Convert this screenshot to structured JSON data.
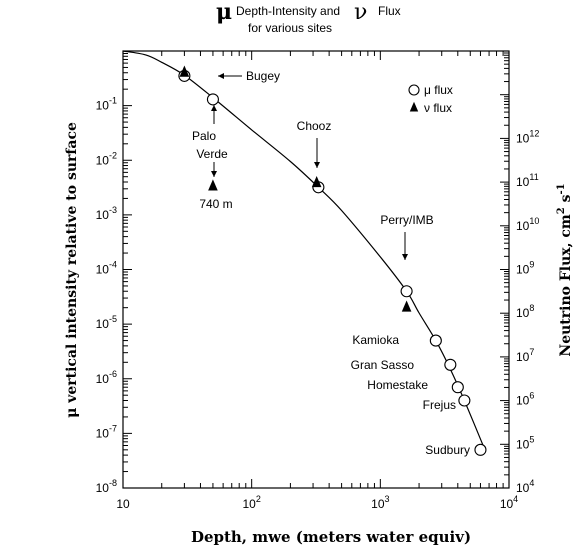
{
  "chart_data": {
    "type": "scatter",
    "title": {
      "mu_symbol": "μ",
      "line1_text": "Depth-Intensity and",
      "nu_symbol": "ν",
      "flux_text": "Flux",
      "line2": "for various sites"
    },
    "xlabel": "Depth, mwe (meters water equiv)",
    "ylabel_left": "μ vertical intensity relative to surface",
    "ylabel_right": {
      "main": "Neutrino Flux, cm",
      "sup1": "2",
      "mid": " s",
      "sup2": "-1"
    },
    "x_scale": "log",
    "xlim": [
      10,
      10000
    ],
    "ylim_left": [
      1e-08,
      1
    ],
    "ylim_right": [
      10000,
      100000000000000
    ],
    "grid": false,
    "x_ticks": [
      {
        "base": "10",
        "exp": ""
      },
      {
        "base": "10",
        "exp": "2"
      },
      {
        "base": "10",
        "exp": "3"
      },
      {
        "base": "10",
        "exp": "4"
      }
    ],
    "y_left_ticks": [
      {
        "base": "10",
        "exp": "-1"
      },
      {
        "base": "10",
        "exp": "-2"
      },
      {
        "base": "10",
        "exp": "-3"
      },
      {
        "base": "10",
        "exp": "-4"
      },
      {
        "base": "10",
        "exp": "-5"
      },
      {
        "base": "10",
        "exp": "-6"
      },
      {
        "base": "10",
        "exp": "-7"
      },
      {
        "base": "10",
        "exp": "-8"
      }
    ],
    "y_right_ticks": [
      {
        "base": "10",
        "exp": "12"
      },
      {
        "base": "10",
        "exp": "11"
      },
      {
        "base": "10",
        "exp": "10"
      },
      {
        "base": "10",
        "exp": "9"
      },
      {
        "base": "10",
        "exp": "8"
      },
      {
        "base": "10",
        "exp": "7"
      },
      {
        "base": "10",
        "exp": "6"
      },
      {
        "base": "10",
        "exp": "5"
      },
      {
        "base": "10",
        "exp": "4"
      }
    ],
    "legend": {
      "position": "top-right",
      "items": [
        {
          "marker": "circle",
          "label": "μ flux"
        },
        {
          "marker": "triangle",
          "label": "ν flux"
        }
      ]
    },
    "curve": {
      "x": [
        10,
        15,
        20,
        30,
        50,
        100,
        200,
        330,
        500,
        1000,
        1600,
        2000,
        2700,
        3500,
        4500,
        6500
      ],
      "y": [
        1.0,
        0.85,
        0.62,
        0.36,
        0.14,
        0.036,
        0.0095,
        0.0032,
        0.0012,
        0.00017,
        4e-05,
        1.6e-05,
        5e-06,
        1.5e-06,
        4e-07,
        5e-08
      ]
    },
    "series": [
      {
        "name": "μ flux",
        "marker": "circle",
        "points": [
          {
            "x": 30,
            "y": 0.35
          },
          {
            "x": 50,
            "y": 0.13
          },
          {
            "x": 330,
            "y": 0.0032
          },
          {
            "x": 1600,
            "y": 4e-05
          },
          {
            "x": 2700,
            "y": 5e-06
          },
          {
            "x": 3500,
            "y": 1.8e-06
          },
          {
            "x": 4000,
            "y": 7e-07
          },
          {
            "x": 4500,
            "y": 4e-07
          },
          {
            "x": 6000,
            "y": 5e-08
          }
        ]
      },
      {
        "name": "ν flux",
        "marker": "triangle",
        "points": [
          {
            "x": 30,
            "y": 0.4
          },
          {
            "x": 50,
            "y": 0.0033
          },
          {
            "x": 320,
            "y": 0.0038
          },
          {
            "x": 1600,
            "y": 2e-05
          }
        ]
      }
    ],
    "annotations": [
      {
        "id": "bugey",
        "text": "Bugey"
      },
      {
        "id": "palo",
        "text": "Palo"
      },
      {
        "id": "verde",
        "text": "Verde"
      },
      {
        "id": "m740",
        "text": "740 m"
      },
      {
        "id": "chooz",
        "text": "Chooz"
      },
      {
        "id": "perry",
        "text": "Perry/IMB"
      },
      {
        "id": "kamioka",
        "text": "Kamioka"
      },
      {
        "id": "gransasso",
        "text": "Gran Sasso"
      },
      {
        "id": "homestake",
        "text": "Homestake"
      },
      {
        "id": "frejus",
        "text": "Frejus"
      },
      {
        "id": "sudbury",
        "text": "Sudbury"
      }
    ]
  }
}
